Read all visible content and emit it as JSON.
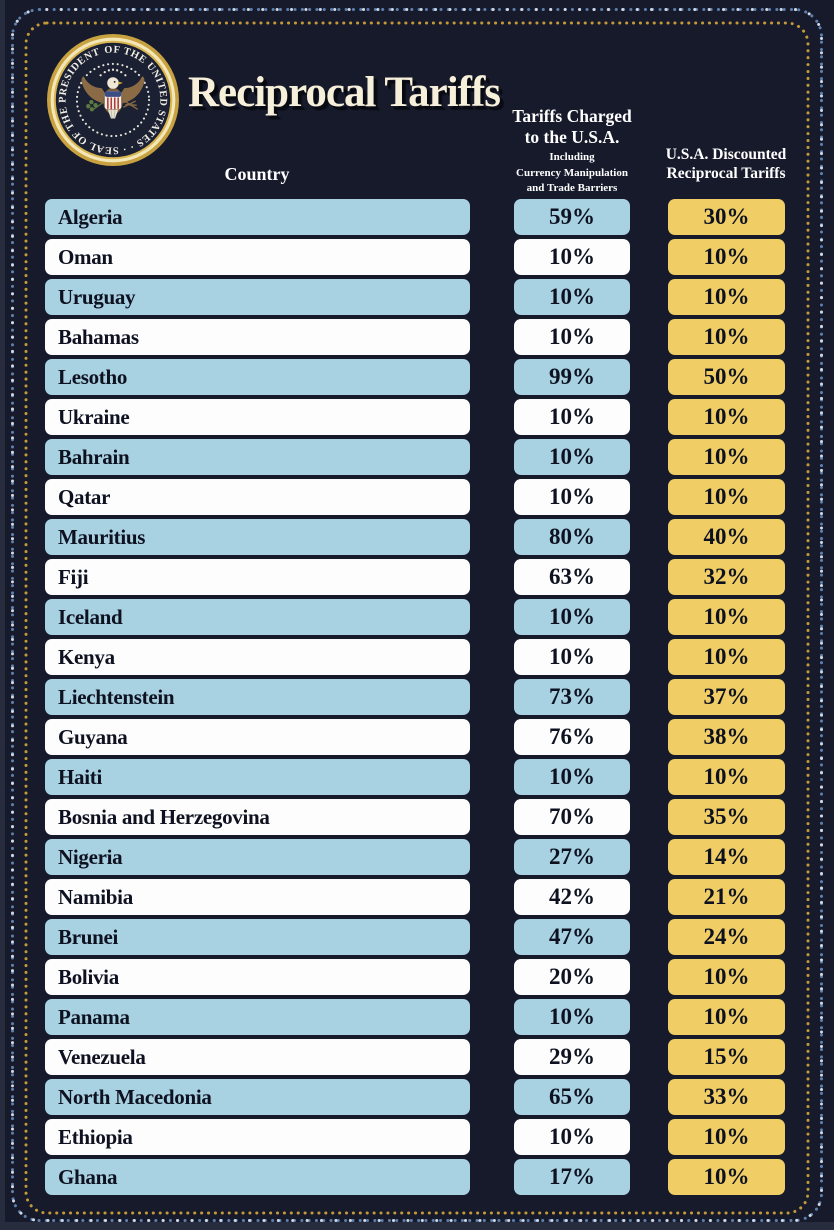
{
  "title": "Reciprocal Tariffs",
  "seal": {
    "label": "Seal of the President of the United States",
    "ring_text": "OF THE UNITED STATES · · SEAL OF THE PRESIDENT "
  },
  "headers": {
    "country": "Country",
    "charged_line1": "Tariffs Charged",
    "charged_line2": "to the U.S.A.",
    "charged_sub1": "Including",
    "charged_sub2": "Currency Manipulation",
    "charged_sub3": "and Trade Barriers",
    "discounted_line1": "U.S.A. Discounted",
    "discounted_line2": "Reciprocal Tariffs"
  },
  "colors": {
    "background": "#161a2b",
    "row_blue": "#a8d1e2",
    "row_white": "#fdfdfd",
    "gold_pill": "#f0ce65",
    "title_cream": "#f6efd9",
    "pill_text": "#0d1120",
    "border_outer_blue": "#5d80ae",
    "border_outer_light": "#cfd8e6",
    "border_inner_gold": "#c49a39"
  },
  "chart_data": {
    "type": "table",
    "title": "Reciprocal Tariffs",
    "unit": "percent",
    "columns": [
      "Country",
      "Tariffs Charged to the U.S.A. Including Currency Manipulation and Trade Barriers",
      "U.S.A. Discounted Reciprocal Tariffs"
    ],
    "rows": [
      {
        "country": "Algeria",
        "charged": 59,
        "discounted": 30
      },
      {
        "country": "Oman",
        "charged": 10,
        "discounted": 10
      },
      {
        "country": "Uruguay",
        "charged": 10,
        "discounted": 10
      },
      {
        "country": "Bahamas",
        "charged": 10,
        "discounted": 10
      },
      {
        "country": "Lesotho",
        "charged": 99,
        "discounted": 50
      },
      {
        "country": "Ukraine",
        "charged": 10,
        "discounted": 10
      },
      {
        "country": "Bahrain",
        "charged": 10,
        "discounted": 10
      },
      {
        "country": "Qatar",
        "charged": 10,
        "discounted": 10
      },
      {
        "country": "Mauritius",
        "charged": 80,
        "discounted": 40
      },
      {
        "country": "Fiji",
        "charged": 63,
        "discounted": 32
      },
      {
        "country": "Iceland",
        "charged": 10,
        "discounted": 10
      },
      {
        "country": "Kenya",
        "charged": 10,
        "discounted": 10
      },
      {
        "country": "Liechtenstein",
        "charged": 73,
        "discounted": 37
      },
      {
        "country": "Guyana",
        "charged": 76,
        "discounted": 38
      },
      {
        "country": "Haiti",
        "charged": 10,
        "discounted": 10
      },
      {
        "country": "Bosnia and Herzegovina",
        "charged": 70,
        "discounted": 35
      },
      {
        "country": "Nigeria",
        "charged": 27,
        "discounted": 14
      },
      {
        "country": "Namibia",
        "charged": 42,
        "discounted": 21
      },
      {
        "country": "Brunei",
        "charged": 47,
        "discounted": 24
      },
      {
        "country": "Bolivia",
        "charged": 20,
        "discounted": 10
      },
      {
        "country": "Panama",
        "charged": 10,
        "discounted": 10
      },
      {
        "country": "Venezuela",
        "charged": 29,
        "discounted": 15
      },
      {
        "country": "North Macedonia",
        "charged": 65,
        "discounted": 33
      },
      {
        "country": "Ethiopia",
        "charged": 10,
        "discounted": 10
      },
      {
        "country": "Ghana",
        "charged": 17,
        "discounted": 10
      }
    ]
  }
}
